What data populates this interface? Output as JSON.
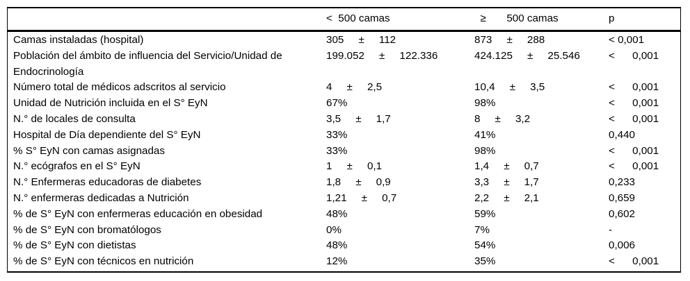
{
  "table": {
    "header": {
      "col_label": "",
      "col_lt500": "<  500 camas",
      "col_gte500": "  ≥       500 camas",
      "col_p": "p"
    },
    "rows": [
      {
        "label": "Camas instaladas (hospital)",
        "lt500": "305     ±     112",
        "gte500": "873     ±     288",
        "p": "< 0,001"
      },
      {
        "label": "Población del ámbito de influencia del Servicio/Unidad de Endocrinología",
        "lt500": "199.052     ±     122.336",
        "gte500": "424.125     ±     25.546",
        "p": "<      0,001"
      },
      {
        "label": "Número total de médicos adscritos al servicio",
        "lt500": "4     ±     2,5",
        "gte500": "10,4     ±     3,5",
        "p": "<      0,001"
      },
      {
        "label": "Unidad de Nutrición incluida en el S° EyN",
        "lt500": "67%",
        "gte500": "98%",
        "p": "<      0,001"
      },
      {
        "label": "N.° de locales de consulta",
        "lt500": "3,5     ±     1,7",
        "gte500": "8     ±     3,2",
        "p": "<      0,001"
      },
      {
        "label": "Hospital de Día dependiente del S° EyN",
        "lt500": "33%",
        "gte500": "41%",
        "p": "0,440"
      },
      {
        "label": "% S° EyN con camas asignadas",
        "lt500": "33%",
        "gte500": "98%",
        "p": "<      0,001"
      },
      {
        "label": "N.° ecógrafos en el S° EyN",
        "lt500": "1     ±     0,1",
        "gte500": "1,4     ±     0,7",
        "p": "<      0,001"
      },
      {
        "label": "N.° Enfermeras educadoras de diabetes",
        "lt500": "1,8     ±     0,9",
        "gte500": "3,3     ±     1,7",
        "p": "0,233"
      },
      {
        "label": "N.° enfermeras dedicadas a Nutrición",
        "lt500": "1,21     ±     0,7",
        "gte500": "2,2     ±     2,1",
        "p": "0,659"
      },
      {
        "label": "% de S° EyN con enfermeras educación en obesidad",
        "lt500": "48%",
        "gte500": "59%",
        "p": "0,602"
      },
      {
        "label": "% de S° EyN con bromatólogos",
        "lt500": "0%",
        "gte500": "7%",
        "p": "-"
      },
      {
        "label": "% de S° EyN con dietistas",
        "lt500": "48%",
        "gte500": "54%",
        "p": "0,006"
      },
      {
        "label": "% de S° EyN con técnicos en nutrición",
        "lt500": "12%",
        "gte500": "35%",
        "p": "<      0,001"
      }
    ]
  }
}
